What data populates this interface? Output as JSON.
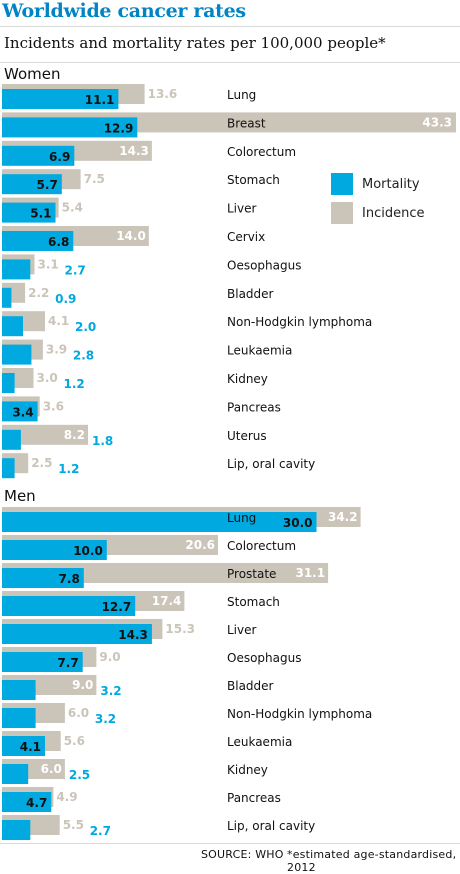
{
  "title": "Worldwide cancer rates",
  "subtitle": "Incidents and mortality rates per 100,000 people*",
  "source": "SOURCE: WHO",
  "footnote": "*estimated age-standardised, 2012",
  "legend": {
    "mortality": "Mortality",
    "incidence": "Incidence",
    "colors": {
      "mortality": "#00a9e0",
      "incidence": "#cbc5b9"
    }
  },
  "chart_data": [
    {
      "type": "bar",
      "title": "Women",
      "series": [
        {
          "name": "Mortality",
          "values": [
            11.1,
            12.9,
            6.9,
            5.7,
            5.1,
            6.8,
            2.7,
            0.9,
            2.0,
            2.8,
            1.2,
            3.4,
            1.8,
            1.2
          ]
        },
        {
          "name": "Incidence",
          "values": [
            13.6,
            43.3,
            14.3,
            7.5,
            5.4,
            14.0,
            3.1,
            2.2,
            4.1,
            3.9,
            3.0,
            3.6,
            8.2,
            2.5
          ]
        }
      ],
      "categories": [
        "Lung",
        "Breast",
        "Colorectum",
        "Stomach",
        "Liver",
        "Cervix",
        "Oesophagus",
        "Bladder",
        "Non-Hodgkin lymphoma",
        "Leukaemia",
        "Kidney",
        "Pancreas",
        "Uterus",
        "Lip, oral cavity"
      ],
      "mortality_labels": [
        "11.1",
        "12.9",
        "6.9",
        "5.7",
        "5.1",
        "6.8",
        "2.7",
        "0.9",
        "2.0",
        "2.8",
        "1.2",
        "3.4",
        "1.8",
        "1.2"
      ],
      "incidence_labels": [
        "13.6",
        "43.3",
        "14.3",
        "7.5",
        "5.4",
        "14.0",
        "3.1",
        "2.2",
        "4.1",
        "3.9",
        "3.0",
        "3.6",
        "8.2",
        "2.5"
      ],
      "xlim": [
        0,
        45
      ]
    },
    {
      "type": "bar",
      "title": "Men",
      "series": [
        {
          "name": "Mortality",
          "values": [
            30.0,
            10.0,
            7.8,
            12.7,
            14.3,
            7.7,
            3.2,
            3.2,
            4.1,
            2.5,
            4.7,
            2.7
          ]
        },
        {
          "name": "Incidence",
          "values": [
            34.2,
            20.6,
            31.1,
            17.4,
            15.3,
            9.0,
            9.0,
            6.0,
            5.6,
            6.0,
            4.9,
            5.5
          ]
        }
      ],
      "categories": [
        "Lung",
        "Colorectum",
        "Prostate",
        "Stomach",
        "Liver",
        "Oesophagus",
        "Bladder",
        "Non-Hodgkin lymphoma",
        "Leukaemia",
        "Kidney",
        "Pancreas",
        "Lip, oral cavity"
      ],
      "mortality_labels": [
        "30.0",
        "10.0",
        "7.8",
        "12.7",
        "14.3",
        "7.7",
        "3.2",
        "3.2",
        "4.1",
        "2.5",
        "4.7",
        "2.7"
      ],
      "incidence_labels": [
        "34.2",
        "20.6",
        "31.1",
        "17.4",
        "15.3",
        "9.0",
        "9.0",
        "6.0",
        "5.6",
        "6.0",
        "4.9",
        "5.5"
      ],
      "xlim": [
        0,
        45
      ]
    }
  ]
}
